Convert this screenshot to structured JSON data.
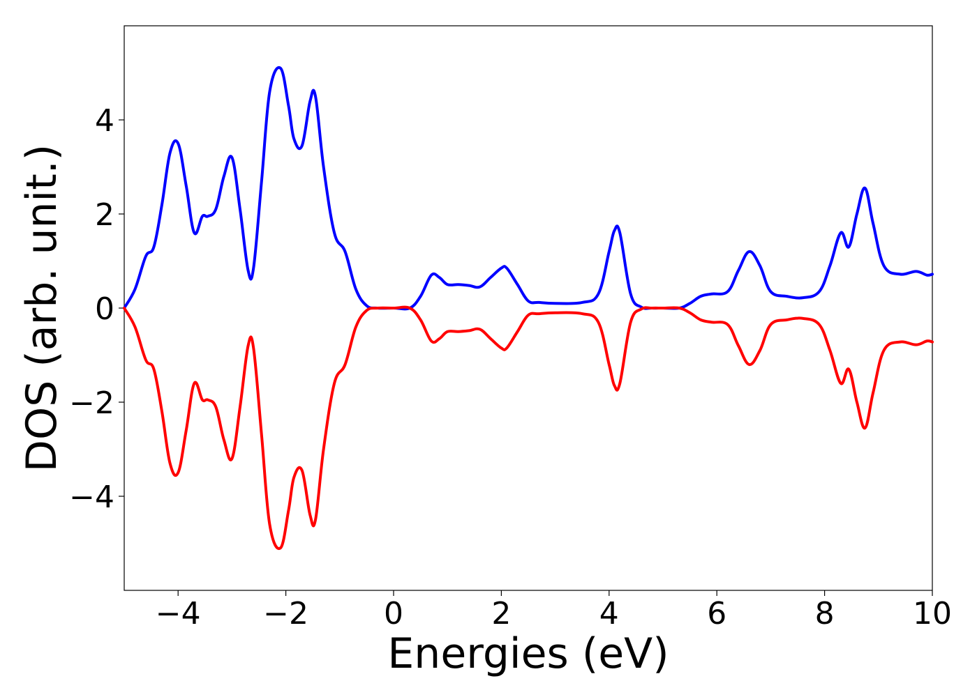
{
  "chart_data": {
    "type": "line",
    "title": "",
    "xlabel": "Energies (eV)",
    "ylabel": "DOS (arb. unit.)",
    "xlim": [
      -5,
      10
    ],
    "ylim": [
      -6,
      6
    ],
    "grid": false,
    "legend": "none",
    "x_ticks": [
      -4,
      -2,
      0,
      2,
      4,
      6,
      8,
      10
    ],
    "x_tick_labels": [
      "−4",
      "−2",
      "0",
      "2",
      "4",
      "6",
      "8",
      "10"
    ],
    "y_ticks": [
      -4,
      -2,
      0,
      2,
      4
    ],
    "y_tick_labels": [
      "−4",
      "−2",
      "0",
      "2",
      "4"
    ],
    "x": [
      -5.0,
      -4.8,
      -4.6,
      -4.45,
      -4.3,
      -4.15,
      -4.0,
      -3.85,
      -3.7,
      -3.55,
      -3.45,
      -3.3,
      -3.15,
      -3.0,
      -2.85,
      -2.7,
      -2.6,
      -2.45,
      -2.3,
      -2.1,
      -1.95,
      -1.85,
      -1.7,
      -1.55,
      -1.45,
      -1.3,
      -1.1,
      -0.9,
      -0.7,
      -0.5,
      -0.3,
      0.0,
      0.3,
      0.5,
      0.7,
      0.85,
      1.0,
      1.2,
      1.4,
      1.6,
      1.8,
      2.0,
      2.1,
      2.3,
      2.5,
      2.7,
      3.0,
      3.5,
      3.8,
      4.0,
      4.1,
      4.2,
      4.4,
      4.6,
      4.8,
      5.0,
      5.3,
      5.5,
      5.7,
      5.9,
      6.2,
      6.4,
      6.6,
      6.8,
      7.0,
      7.3,
      7.6,
      7.9,
      8.1,
      8.3,
      8.45,
      8.6,
      8.75,
      8.9,
      9.1,
      9.4,
      9.7,
      9.9,
      10.0
    ],
    "series": [
      {
        "color": "#0000ff",
        "values": [
          0.0,
          0.4,
          1.1,
          1.3,
          2.2,
          3.3,
          3.5,
          2.6,
          1.6,
          1.95,
          1.95,
          2.1,
          2.8,
          3.2,
          2.1,
          0.8,
          0.85,
          2.7,
          4.6,
          5.1,
          4.3,
          3.6,
          3.45,
          4.4,
          4.5,
          3.0,
          1.6,
          1.2,
          0.4,
          0.05,
          0.0,
          0.0,
          0.0,
          0.25,
          0.7,
          0.65,
          0.5,
          0.5,
          0.48,
          0.45,
          0.65,
          0.85,
          0.85,
          0.5,
          0.15,
          0.12,
          0.1,
          0.12,
          0.3,
          1.2,
          1.65,
          1.6,
          0.3,
          0.02,
          0.0,
          0.0,
          0.0,
          0.1,
          0.25,
          0.3,
          0.35,
          0.8,
          1.2,
          0.9,
          0.35,
          0.25,
          0.22,
          0.35,
          0.9,
          1.6,
          1.3,
          2.0,
          2.55,
          1.8,
          0.9,
          0.72,
          0.78,
          0.7,
          0.72
        ]
      },
      {
        "color": "#ff0000",
        "values": [
          0.0,
          -0.4,
          -1.1,
          -1.3,
          -2.2,
          -3.3,
          -3.5,
          -2.6,
          -1.6,
          -1.95,
          -1.95,
          -2.1,
          -2.8,
          -3.2,
          -2.1,
          -0.8,
          -0.85,
          -2.7,
          -4.6,
          -5.1,
          -4.3,
          -3.6,
          -3.45,
          -4.4,
          -4.5,
          -3.0,
          -1.6,
          -1.2,
          -0.4,
          -0.05,
          0.0,
          0.0,
          0.0,
          -0.25,
          -0.7,
          -0.65,
          -0.5,
          -0.5,
          -0.48,
          -0.45,
          -0.65,
          -0.85,
          -0.85,
          -0.5,
          -0.15,
          -0.12,
          -0.1,
          -0.12,
          -0.3,
          -1.2,
          -1.65,
          -1.6,
          -0.3,
          -0.02,
          0.0,
          0.0,
          0.0,
          -0.1,
          -0.25,
          -0.3,
          -0.35,
          -0.8,
          -1.2,
          -0.9,
          -0.35,
          -0.25,
          -0.22,
          -0.35,
          -0.9,
          -1.6,
          -1.3,
          -2.0,
          -2.55,
          -1.8,
          -0.9,
          -0.72,
          -0.78,
          -0.7,
          -0.72
        ]
      }
    ]
  }
}
